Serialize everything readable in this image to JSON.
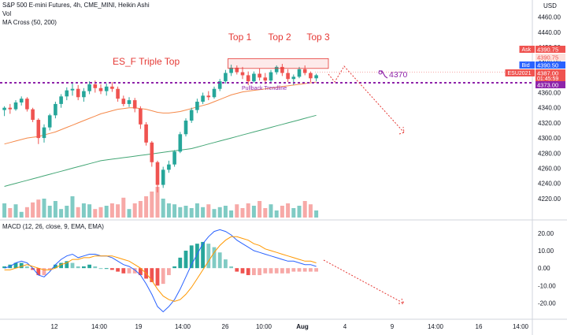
{
  "header": {
    "symbol_line": "S&P 500 E-mini Futures, 4h, CME_MINI, Heikin Ashi",
    "vol_label": "Vol",
    "ma_label": "MA Cross (50, 200)",
    "currency": "USD"
  },
  "colors": {
    "bull": "#26a69a",
    "bear": "#ef5350",
    "vol_bull": "#80cbc4",
    "vol_bear": "#f7a9a7",
    "ma50": "#f5894a",
    "ma200": "#43a675",
    "annotation": "#e53935",
    "level": "#8e24aa",
    "macd_line": "#2962ff",
    "signal_line": "#ff9800",
    "projection": "#e53935"
  },
  "chart_data": [
    {
      "type": "candlestick",
      "title": "S&P 500 E-mini Futures, 4h, CME_MINI, Heikin Ashi",
      "ylim": [
        4200,
        4470
      ],
      "y_ticks": [
        4460,
        4440,
        4420,
        4400,
        4380,
        4360,
        4340,
        4320,
        4300,
        4280,
        4260,
        4240,
        4220
      ],
      "x_ticks": [
        "12",
        "14:00",
        "19",
        "14:00",
        "26",
        "10:00",
        "Aug",
        "4",
        "9",
        "14:00",
        "16",
        "14:00"
      ],
      "price_labels": [
        {
          "label": "Ask",
          "value": "4390.75",
          "sub": ""
        },
        {
          "label": "",
          "value": "4390.75",
          "sub": ""
        },
        {
          "label": "Bid",
          "value": "4390.50",
          "sub": ""
        },
        {
          "label": "ESU2021",
          "value": "4387.00",
          "sub": "01:45:59"
        },
        {
          "label": "",
          "value": "4373.00",
          "sub": ""
        }
      ],
      "annotations": {
        "pattern": "ES_F Triple Top",
        "tops": [
          "Top 1",
          "Top 2",
          "Top 3"
        ],
        "trendline": "Pullback Trendline",
        "target": "4370",
        "level": 4373
      },
      "candles": [
        [
          4337,
          4342,
          4329,
          4340
        ],
        [
          4340,
          4345,
          4332,
          4338
        ],
        [
          4338,
          4350,
          4336,
          4347
        ],
        [
          4347,
          4355,
          4343,
          4352
        ],
        [
          4352,
          4354,
          4335,
          4338
        ],
        [
          4338,
          4340,
          4321,
          4324
        ],
        [
          4324,
          4326,
          4292,
          4300
        ],
        [
          4300,
          4318,
          4294,
          4314
        ],
        [
          4314,
          4332,
          4310,
          4330
        ],
        [
          4330,
          4348,
          4326,
          4345
        ],
        [
          4345,
          4358,
          4340,
          4355
        ],
        [
          4355,
          4367,
          4350,
          4363
        ],
        [
          4363,
          4374,
          4356,
          4365
        ],
        [
          4365,
          4370,
          4350,
          4354
        ],
        [
          4354,
          4366,
          4348,
          4362
        ],
        [
          4362,
          4375,
          4358,
          4371
        ],
        [
          4371,
          4376,
          4360,
          4366
        ],
        [
          4366,
          4371,
          4358,
          4362
        ],
        [
          4362,
          4372,
          4356,
          4368
        ],
        [
          4368,
          4374,
          4361,
          4365
        ],
        [
          4365,
          4368,
          4348,
          4352
        ],
        [
          4352,
          4356,
          4342,
          4345
        ],
        [
          4345,
          4354,
          4341,
          4350
        ],
        [
          4350,
          4353,
          4334,
          4339
        ],
        [
          4339,
          4342,
          4312,
          4318
        ],
        [
          4318,
          4321,
          4290,
          4294
        ],
        [
          4294,
          4296,
          4262,
          4268
        ],
        [
          4268,
          4270,
          4228,
          4238
        ],
        [
          4238,
          4262,
          4234,
          4258
        ],
        [
          4258,
          4270,
          4254,
          4265
        ],
        [
          4265,
          4284,
          4262,
          4282
        ],
        [
          4282,
          4308,
          4280,
          4305
        ],
        [
          4305,
          4326,
          4302,
          4323
        ],
        [
          4323,
          4340,
          4320,
          4337
        ],
        [
          4337,
          4352,
          4333,
          4348
        ],
        [
          4348,
          4360,
          4345,
          4356
        ],
        [
          4356,
          4362,
          4350,
          4354
        ],
        [
          4354,
          4368,
          4352,
          4365
        ],
        [
          4365,
          4378,
          4362,
          4375
        ],
        [
          4375,
          4390,
          4372,
          4386
        ],
        [
          4386,
          4397,
          4382,
          4393
        ],
        [
          4393,
          4396,
          4384,
          4387
        ],
        [
          4387,
          4394,
          4378,
          4383
        ],
        [
          4383,
          4388,
          4370,
          4375
        ],
        [
          4375,
          4388,
          4373,
          4385
        ],
        [
          4385,
          4392,
          4376,
          4380
        ],
        [
          4380,
          4386,
          4371,
          4376
        ],
        [
          4376,
          4390,
          4374,
          4387
        ],
        [
          4387,
          4396,
          4384,
          4394
        ],
        [
          4394,
          4398,
          4382,
          4386
        ],
        [
          4386,
          4391,
          4374,
          4378
        ],
        [
          4378,
          4384,
          4370,
          4381
        ],
        [
          4381,
          4394,
          4379,
          4391
        ],
        [
          4391,
          4396,
          4383,
          4386
        ],
        [
          4386,
          4388,
          4374,
          4379
        ],
        [
          4379,
          4385,
          4375,
          4383
        ]
      ],
      "volume": [
        30,
        20,
        28,
        12,
        22,
        32,
        38,
        40,
        25,
        35,
        18,
        25,
        45,
        22,
        30,
        28,
        18,
        22,
        25,
        30,
        28,
        42,
        18,
        30,
        35,
        45,
        55,
        65,
        40,
        30,
        28,
        22,
        25,
        20,
        30,
        22,
        28,
        18,
        22,
        25,
        15,
        28,
        20,
        30,
        25,
        35,
        20,
        28,
        15,
        25,
        30,
        20,
        25,
        35,
        28,
        15
      ],
      "ma50": [
        4292,
        4294,
        4296,
        4298,
        4300,
        4301,
        4302,
        4304,
        4306,
        4308,
        4311,
        4314,
        4317,
        4320,
        4323,
        4326,
        4329,
        4332,
        4334,
        4336,
        4338,
        4339,
        4340,
        4340,
        4339,
        4338,
        4336,
        4334,
        4333,
        4333,
        4334,
        4335,
        4337,
        4339,
        4341,
        4343,
        4345,
        4348,
        4351,
        4354,
        4357,
        4359,
        4361,
        4362,
        4363,
        4364,
        4365,
        4366,
        4367,
        4368,
        4369,
        4370,
        4371,
        4372,
        4373,
        4374
      ],
      "ma200": [
        4236,
        4238,
        4240,
        4242,
        4244,
        4246,
        4248,
        4250,
        4252,
        4254,
        4256,
        4258,
        4260,
        4262,
        4264,
        4266,
        4268,
        4270,
        4271,
        4272,
        4273,
        4274,
        4275,
        4276,
        4277,
        4278,
        4279,
        4280,
        4281,
        4282,
        4283,
        4284,
        4285,
        4286,
        4288,
        4290,
        4292,
        4294,
        4296,
        4298,
        4300,
        4302,
        4304,
        4306,
        4308,
        4310,
        4312,
        4314,
        4316,
        4318,
        4320,
        4322,
        4324,
        4326,
        4328,
        4330
      ]
    },
    {
      "type": "line",
      "title": "MACD (12, 26, close, 9, EMA, EMA)",
      "ylim": [
        -27,
        24
      ],
      "y_ticks": [
        20,
        10,
        0,
        -10,
        -20
      ],
      "series": [
        {
          "name": "MACD",
          "values": [
            0,
            1,
            3,
            4,
            3,
            0,
            -4,
            -5,
            -2,
            2,
            5,
            7,
            8,
            6,
            7,
            8,
            8,
            7,
            7,
            6,
            4,
            2,
            1,
            -1,
            -4,
            -9,
            -15,
            -22,
            -25,
            -22,
            -18,
            -12,
            -5,
            2,
            8,
            14,
            18,
            21,
            22,
            21,
            19,
            16,
            14,
            12,
            10,
            9,
            8,
            7,
            6,
            5,
            4,
            4,
            3,
            2,
            2,
            1
          ]
        },
        {
          "name": "Signal",
          "values": [
            -1,
            -1,
            0,
            1,
            2,
            1,
            0,
            -1,
            -1,
            0,
            2,
            3,
            5,
            5,
            6,
            6,
            7,
            7,
            7,
            7,
            6,
            5,
            4,
            2,
            0,
            -3,
            -7,
            -12,
            -16,
            -18,
            -19,
            -18,
            -15,
            -11,
            -6,
            -1,
            4,
            9,
            13,
            16,
            18,
            18,
            17,
            16,
            14,
            13,
            11,
            10,
            9,
            8,
            7,
            6,
            5,
            4,
            4,
            3
          ]
        }
      ],
      "histogram": [
        1,
        2,
        3,
        3,
        1,
        -1,
        -4,
        -4,
        -1,
        2,
        3,
        4,
        3,
        1,
        1,
        2,
        1,
        0,
        0,
        -1,
        -2,
        -3,
        -3,
        -3,
        -4,
        -6,
        -8,
        -10,
        -9,
        -4,
        1,
        6,
        10,
        13,
        14,
        15,
        14,
        12,
        9,
        5,
        1,
        -2,
        -3,
        -4,
        -4,
        -4,
        -3,
        -3,
        -3,
        -3,
        -3,
        -2,
        -2,
        -2,
        -2,
        -2
      ]
    }
  ]
}
